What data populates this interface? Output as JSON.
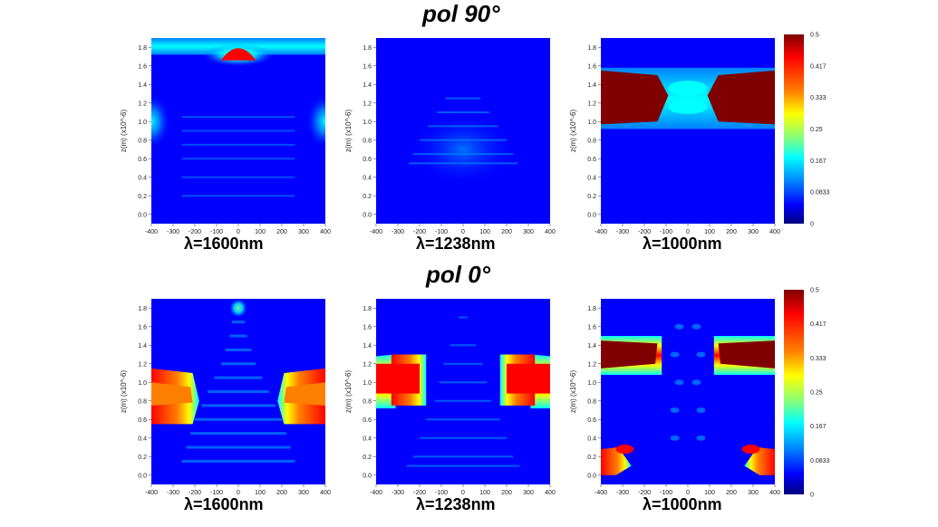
{
  "row_titles": [
    "pol  90°",
    "pol  0°"
  ],
  "colors": {
    "jet": [
      "#00007f",
      "#0000ff",
      "#0080ff",
      "#00ffff",
      "#80ff80",
      "#ffff00",
      "#ff8000",
      "#ff0000",
      "#7f0000"
    ],
    "background": "#ffffff"
  },
  "chart_data": [
    {
      "type": "heatmap",
      "row": 0,
      "col": 0,
      "label": "λ=1600nm",
      "pattern": "p90_1600",
      "x_ticks": [
        -400,
        -300,
        -200,
        -100,
        0,
        100,
        200,
        300,
        400
      ],
      "y_ticks": [
        0.0,
        0.2,
        0.4,
        0.6,
        0.8,
        1.0,
        1.2,
        1.4,
        1.6,
        1.8
      ],
      "ylabel": "z(m) (x10^-6)",
      "xlim": [
        -400,
        400
      ],
      "ylim": [
        -0.1,
        1.9
      ]
    },
    {
      "type": "heatmap",
      "row": 0,
      "col": 1,
      "label": "λ=1238nm",
      "pattern": "p90_1238",
      "x_ticks": [
        -400,
        -300,
        -200,
        -100,
        0,
        100,
        200,
        300,
        400
      ],
      "y_ticks": [
        0.0,
        0.2,
        0.4,
        0.6,
        0.8,
        1.0,
        1.2,
        1.4,
        1.6,
        1.8
      ],
      "ylabel": "z(m) (x10^-6)",
      "xlim": [
        -400,
        400
      ],
      "ylim": [
        -0.1,
        1.9
      ]
    },
    {
      "type": "heatmap",
      "row": 0,
      "col": 2,
      "label": "λ=1000nm",
      "pattern": "p90_1000",
      "x_ticks": [
        -400,
        -300,
        -200,
        -100,
        0,
        100,
        200,
        300,
        400
      ],
      "y_ticks": [
        0.0,
        0.2,
        0.4,
        0.6,
        0.8,
        1.0,
        1.2,
        1.4,
        1.6,
        1.8
      ],
      "ylabel": "z(m) (x10^-6)",
      "xlim": [
        -400,
        400
      ],
      "ylim": [
        -0.1,
        1.9
      ],
      "colorbar": {
        "ticks": [
          "0.5",
          "0.417",
          "0.333",
          "0.25",
          "0.167",
          "0.0833",
          "0"
        ],
        "range": [
          0,
          0.5
        ]
      }
    },
    {
      "type": "heatmap",
      "row": 1,
      "col": 0,
      "label": "λ=1600nm",
      "pattern": "p0_1600",
      "x_ticks": [
        -400,
        -300,
        -200,
        -100,
        0,
        100,
        200,
        300,
        400
      ],
      "y_ticks": [
        0.0,
        0.2,
        0.4,
        0.6,
        0.8,
        1.0,
        1.2,
        1.4,
        1.6,
        1.8
      ],
      "ylabel": "z(m) (x10^-6)",
      "xlim": [
        -400,
        400
      ],
      "ylim": [
        -0.1,
        1.9
      ]
    },
    {
      "type": "heatmap",
      "row": 1,
      "col": 1,
      "label": "λ=1238nm",
      "pattern": "p0_1238",
      "x_ticks": [
        -400,
        -300,
        -200,
        -100,
        0,
        100,
        200,
        300,
        400
      ],
      "y_ticks": [
        0.0,
        0.2,
        0.4,
        0.6,
        0.8,
        1.0,
        1.2,
        1.4,
        1.6,
        1.8
      ],
      "ylabel": "z(m) (x10^-6)",
      "xlim": [
        -400,
        400
      ],
      "ylim": [
        -0.1,
        1.9
      ]
    },
    {
      "type": "heatmap",
      "row": 1,
      "col": 2,
      "label": "λ=1000nm",
      "pattern": "p0_1000",
      "x_ticks": [
        -400,
        -300,
        -200,
        -100,
        0,
        100,
        200,
        300,
        400
      ],
      "y_ticks": [
        0.0,
        0.2,
        0.4,
        0.6,
        0.8,
        1.0,
        1.2,
        1.4,
        1.6,
        1.8
      ],
      "ylabel": "z(m) (x10^-6)",
      "xlim": [
        -400,
        400
      ],
      "ylim": [
        -0.1,
        1.9
      ],
      "colorbar": {
        "ticks": [
          "0.5",
          "0.417",
          "0.333",
          "0.25",
          "0.167",
          "0.0833",
          "0"
        ],
        "range": [
          0,
          0.5
        ]
      }
    }
  ]
}
